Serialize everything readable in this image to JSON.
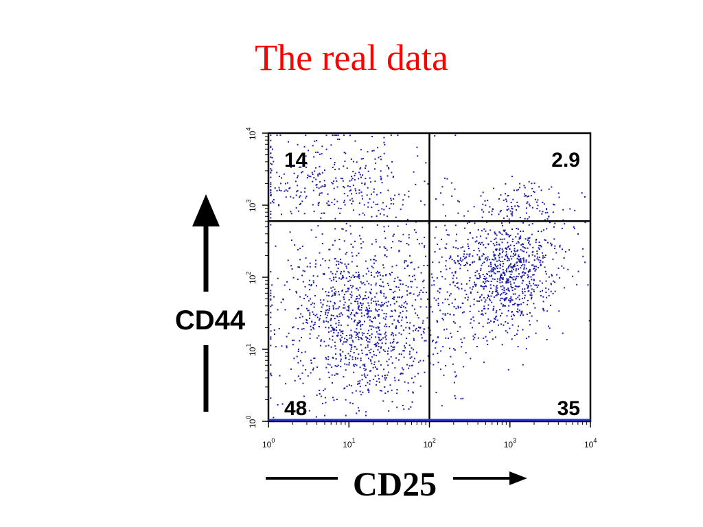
{
  "slide": {
    "title": "The real data"
  },
  "chart_data": {
    "type": "scatter",
    "xlabel": "CD25",
    "ylabel": "CD44",
    "xscale": "log",
    "yscale": "log",
    "xlim": [
      1,
      10000
    ],
    "ylim": [
      1,
      10000
    ],
    "x_ticks": [
      {
        "base": "10",
        "exp": "0",
        "value": 1
      },
      {
        "base": "10",
        "exp": "1",
        "value": 10
      },
      {
        "base": "10",
        "exp": "2",
        "value": 100
      },
      {
        "base": "10",
        "exp": "3",
        "value": 1000
      },
      {
        "base": "10",
        "exp": "4",
        "value": 10000
      }
    ],
    "y_ticks": [
      {
        "base": "10",
        "exp": "0",
        "value": 1
      },
      {
        "base": "10",
        "exp": "1",
        "value": 10
      },
      {
        "base": "10",
        "exp": "2",
        "value": 100
      },
      {
        "base": "10",
        "exp": "3",
        "value": 1000
      },
      {
        "base": "10",
        "exp": "4",
        "value": 10000
      }
    ],
    "gates": {
      "x": 100,
      "y": 600
    },
    "quadrants": [
      {
        "position": "top-left",
        "label": "14"
      },
      {
        "position": "top-right",
        "label": "2.9"
      },
      {
        "position": "bottom-left",
        "label": "48"
      },
      {
        "position": "bottom-right",
        "label": "35"
      }
    ],
    "point_color": "#1a1aa8",
    "populations": [
      {
        "label": "CD44 high CD25 low",
        "fraction": 0.14,
        "x_log_center": 0.9,
        "y_log_center": 3.3,
        "x_log_spread": 0.6,
        "y_log_spread": 0.35
      },
      {
        "label": "CD44 high CD25 high",
        "fraction": 0.029,
        "x_log_center": 3.2,
        "y_log_center": 3.05,
        "x_log_spread": 0.3,
        "y_log_spread": 0.15
      },
      {
        "label": "CD44 low CD25 low",
        "fraction": 0.48,
        "x_log_center": 1.2,
        "y_log_center": 1.4,
        "x_log_spread": 0.55,
        "y_log_spread": 0.6
      },
      {
        "label": "CD44 low CD25 high",
        "fraction": 0.35,
        "x_log_center": 2.95,
        "y_log_center": 2.1,
        "x_log_spread": 0.35,
        "y_log_spread": 0.45
      }
    ]
  }
}
